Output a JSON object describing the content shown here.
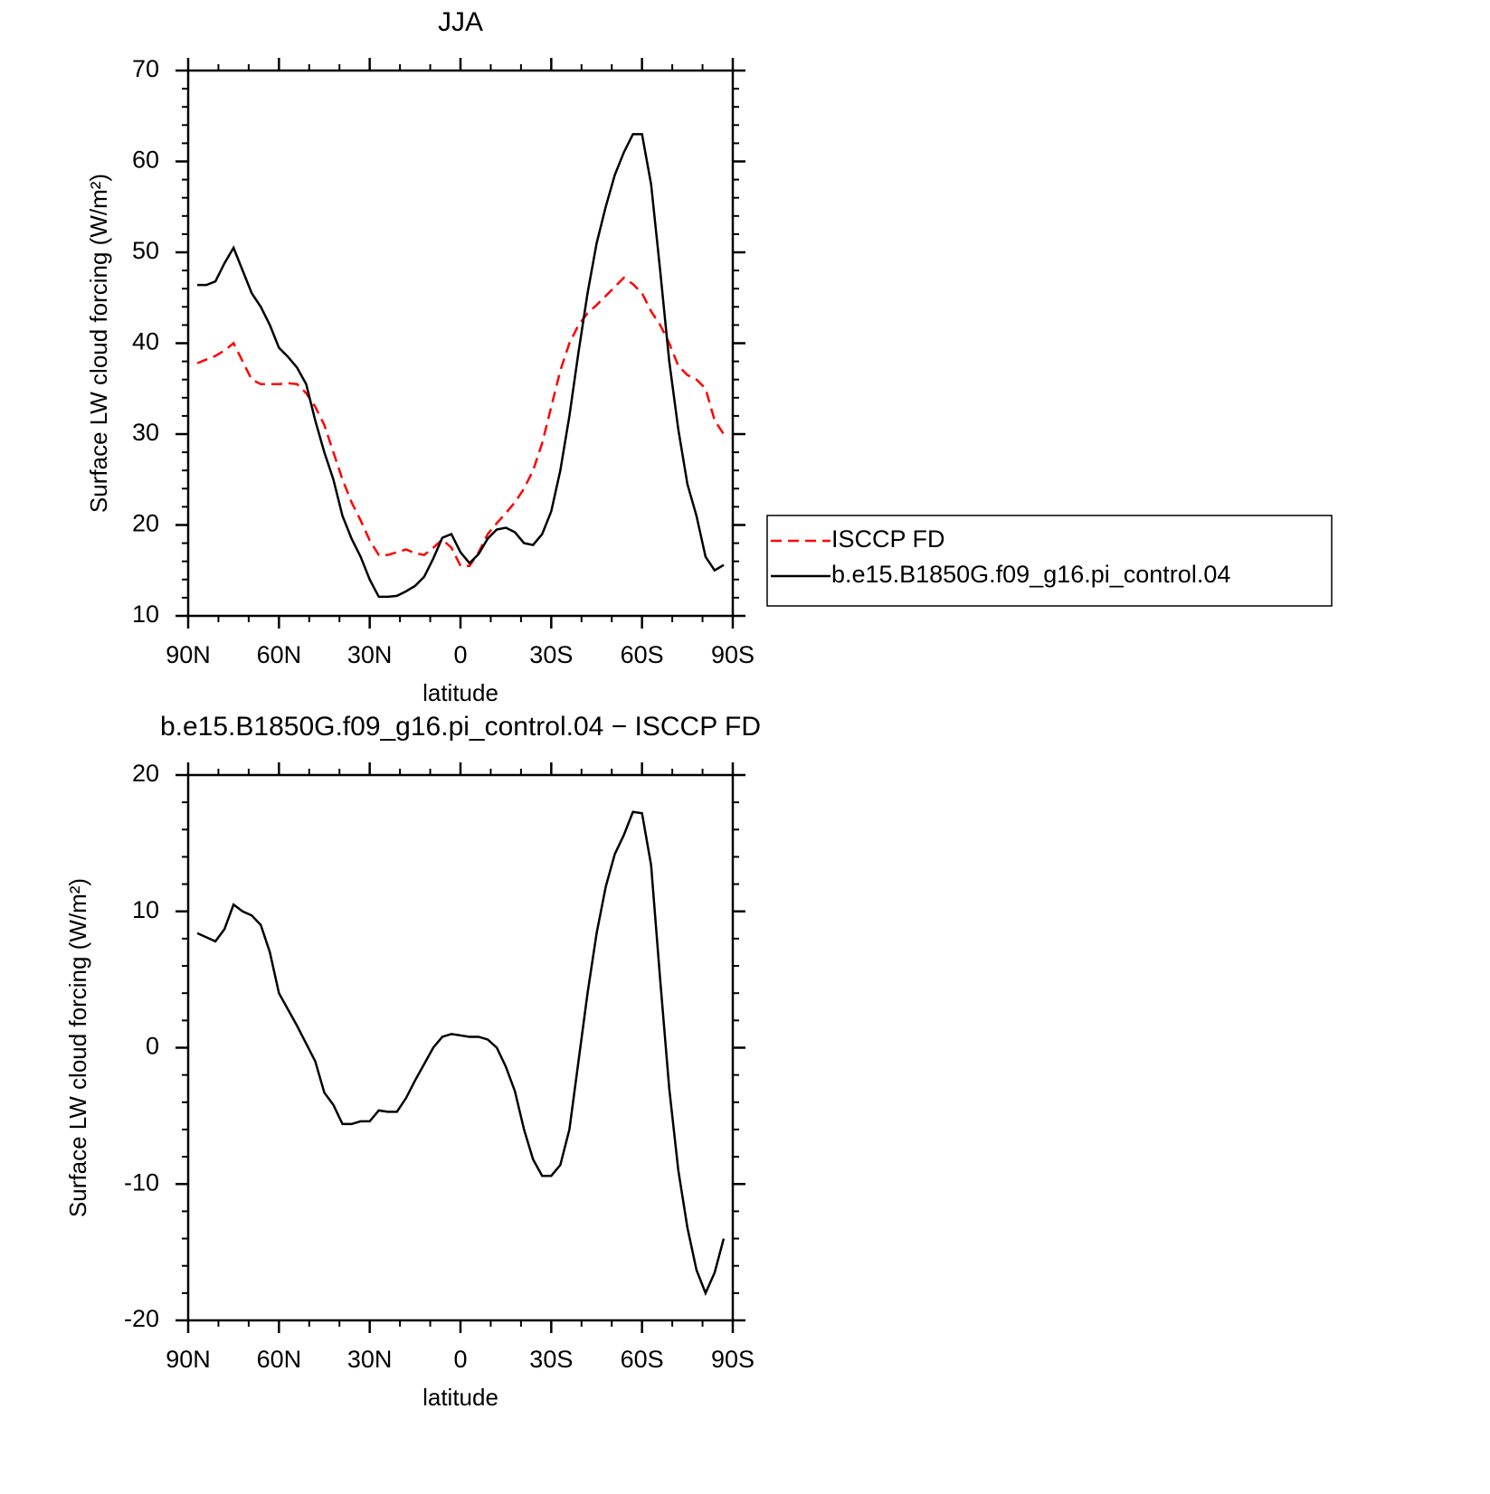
{
  "chart_data": [
    {
      "type": "line",
      "title": "JJA",
      "x_label": "latitude",
      "y_label": "Surface LW cloud forcing (W/m²)",
      "x": [
        87,
        84,
        81,
        78,
        75,
        72,
        69,
        66,
        63,
        60,
        57,
        54,
        51,
        48,
        45,
        42,
        39,
        36,
        33,
        30,
        27,
        24,
        21,
        18,
        15,
        12,
        9,
        6,
        3,
        0,
        -3,
        -6,
        -9,
        -12,
        -15,
        -18,
        -21,
        -24,
        -27,
        -30,
        -33,
        -36,
        -39,
        -42,
        -45,
        -48,
        -51,
        -54,
        -57,
        -60,
        -63,
        -66,
        -69,
        -72,
        -75,
        -78,
        -81,
        -84,
        -87
      ],
      "xlim": [
        90,
        -90
      ],
      "xticks": [
        {
          "value": 90,
          "label": "90N"
        },
        {
          "value": 60,
          "label": "60N"
        },
        {
          "value": 30,
          "label": "30N"
        },
        0,
        {
          "value": -30,
          "label": "30S"
        },
        {
          "value": -60,
          "label": "60S"
        },
        {
          "value": -90,
          "label": "90S"
        }
      ],
      "ylim": [
        10,
        70
      ],
      "yticks": [
        10,
        20,
        30,
        40,
        50,
        60,
        70
      ],
      "legend": "right",
      "series": [
        {
          "name": "ISCCP FD",
          "color": "#ff0000",
          "dash": "dashed",
          "values": [
            37.8,
            38.2,
            38.6,
            39.2,
            40,
            38,
            36,
            35.5,
            35.5,
            35.5,
            35.6,
            35.5,
            34.5,
            33,
            31,
            28,
            25,
            22.5,
            20.5,
            18.3,
            16.7,
            16.7,
            17,
            17.3,
            16.9,
            16.7,
            17.5,
            18.4,
            17.5,
            15.5,
            15.5,
            17,
            19,
            20.2,
            21.3,
            22.5,
            24,
            26,
            29,
            33,
            37,
            40,
            42,
            43.3,
            44.2,
            45.2,
            46.2,
            47.2,
            46.5,
            45.5,
            43.5,
            42,
            40,
            37.5,
            36.5,
            36,
            35,
            31.5,
            30
          ]
        },
        {
          "name": "b.e15.B1850G.f09_g16.pi_control.04",
          "color": "#000000",
          "dash": "solid",
          "values": [
            46.4,
            46.4,
            46.8,
            48.8,
            50.5,
            48,
            45.5,
            44,
            42,
            39.5,
            38.5,
            37.3,
            35.5,
            31.5,
            28,
            25,
            21,
            18.5,
            16.5,
            14,
            12.1,
            12.1,
            12.2,
            12.7,
            13.3,
            14.3,
            16.3,
            18.6,
            19,
            17,
            15.8,
            16.8,
            18.5,
            19.5,
            19.7,
            19.2,
            18,
            17.8,
            19,
            21.5,
            26,
            32,
            39,
            45.5,
            51,
            55,
            58.5,
            61,
            63,
            63,
            57.5,
            48,
            38,
            30.5,
            24.5,
            21,
            16.5,
            15,
            15.6
          ]
        }
      ]
    },
    {
      "type": "line",
      "title": "b.e15.B1850G.f09_g16.pi_control.04 − ISCCP FD",
      "x_label": "latitude",
      "y_label": "Surface LW cloud forcing (W/m²)",
      "x": [
        87,
        84,
        81,
        78,
        75,
        72,
        69,
        66,
        63,
        60,
        57,
        54,
        51,
        48,
        45,
        42,
        39,
        36,
        33,
        30,
        27,
        24,
        21,
        18,
        15,
        12,
        9,
        6,
        3,
        0,
        -3,
        -6,
        -9,
        -12,
        -15,
        -18,
        -21,
        -24,
        -27,
        -30,
        -33,
        -36,
        -39,
        -42,
        -45,
        -48,
        -51,
        -54,
        -57,
        -60,
        -63,
        -66,
        -69,
        -72,
        -75,
        -78,
        -81,
        -84,
        -87
      ],
      "xlim": [
        90,
        -90
      ],
      "xticks": [
        {
          "value": 90,
          "label": "90N"
        },
        {
          "value": 60,
          "label": "60N"
        },
        {
          "value": 30,
          "label": "30N"
        },
        0,
        {
          "value": -30,
          "label": "30S"
        },
        {
          "value": -60,
          "label": "60S"
        },
        {
          "value": -90,
          "label": "90S"
        }
      ],
      "ylim": [
        -20,
        20
      ],
      "yticks": [
        -20,
        -10,
        0,
        10,
        20
      ],
      "series": [
        {
          "color": "#000000",
          "dash": "solid",
          "values": [
            8.4,
            8.1,
            7.8,
            8.7,
            10.5,
            10,
            9.7,
            9,
            7,
            4,
            2.8,
            1.6,
            0.3,
            -1,
            -3.3,
            -4.2,
            -5.6,
            -5.6,
            -5.4,
            -5.4,
            -4.6,
            -4.7,
            -4.7,
            -3.7,
            -2.4,
            -1.2,
            0,
            0.8,
            1,
            0.9,
            0.8,
            0.8,
            0.6,
            0,
            -1.4,
            -3.2,
            -6,
            -8.2,
            -9.4,
            -9.4,
            -8.6,
            -6,
            -1,
            4,
            8.4,
            11.8,
            14.2,
            15.6,
            17.3,
            17.2,
            13.4,
            5,
            -3,
            -9,
            -13.2,
            -16.3,
            -18,
            -16.5,
            -14
          ]
        }
      ]
    }
  ]
}
